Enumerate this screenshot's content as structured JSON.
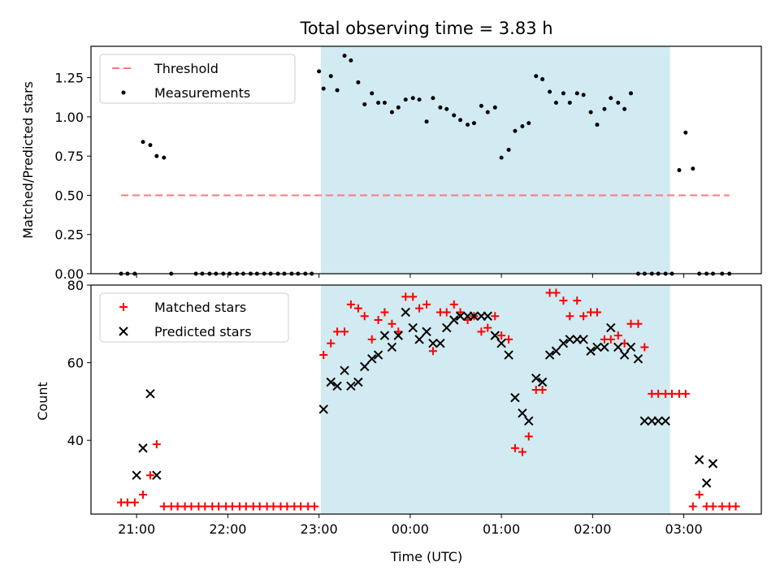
{
  "title": "Total observing time = 3.83 h",
  "xlabel": "Time (UTC)",
  "xticks": [
    "21:00",
    "22:00",
    "23:00",
    "00:00",
    "01:00",
    "02:00",
    "03:00"
  ],
  "colors": {
    "threshold": "#ff7777",
    "matched": "#ff0000",
    "predicted": "#000000",
    "span": "#add8e6"
  },
  "chart_data": [
    {
      "type": "scatter",
      "ylabel": "Matched/Predicted stars",
      "ylim": [
        0,
        1.45
      ],
      "yticks": [
        "0.00",
        "0.25",
        "0.50",
        "0.75",
        "1.00",
        "1.25"
      ],
      "xlim_hours": [
        -3.5,
        3.85
      ],
      "highlight_span_hours": [
        -0.98,
        2.85
      ],
      "legend": {
        "placement": "top-left",
        "entries": [
          "Threshold",
          "Measurements"
        ]
      },
      "threshold": {
        "name": "Threshold",
        "value": 0.5,
        "x_range_hours": [
          -3.17,
          3.5
        ]
      },
      "series": [
        {
          "name": "Measurements",
          "x_hours": [
            -3.17,
            -3.1,
            -3.02,
            -2.93,
            -2.85,
            -2.78,
            -2.7,
            -2.62,
            -2.35,
            -2.28,
            -2.2,
            -2.13,
            -2.05,
            -1.98,
            -1.9,
            -1.83,
            -1.75,
            -1.68,
            -1.6,
            -1.53,
            -1.45,
            -1.38,
            -1.3,
            -1.23,
            -1.15,
            -1.08,
            -1.0,
            -0.95,
            -0.87,
            -0.8,
            -0.72,
            -0.65,
            -0.57,
            -0.5,
            -0.42,
            -0.35,
            -0.28,
            -0.2,
            -0.13,
            -0.05,
            0.03,
            0.1,
            0.18,
            0.25,
            0.33,
            0.4,
            0.48,
            0.55,
            0.63,
            0.7,
            0.78,
            0.85,
            0.93,
            1.0,
            1.08,
            1.15,
            1.23,
            1.3,
            1.38,
            1.45,
            1.53,
            1.6,
            1.68,
            1.75,
            1.83,
            1.9,
            1.98,
            2.05,
            2.13,
            2.2,
            2.28,
            2.35,
            2.42,
            2.5,
            2.57,
            2.65,
            2.72,
            2.8,
            2.87,
            2.95,
            3.02,
            3.1,
            3.17,
            3.25,
            3.32,
            3.42,
            3.5
          ],
          "y": [
            0,
            0,
            0,
            0.84,
            0.82,
            0.75,
            0.74,
            0,
            0,
            0,
            0,
            0,
            0,
            0,
            0,
            0,
            0,
            0,
            0,
            0,
            0,
            0,
            0,
            0,
            0,
            0,
            1.29,
            1.18,
            1.26,
            1.17,
            1.39,
            1.36,
            1.22,
            1.08,
            1.15,
            1.09,
            1.09,
            1.03,
            1.06,
            1.11,
            1.12,
            1.11,
            0.97,
            1.12,
            1.06,
            1.05,
            1.01,
            0.98,
            0.95,
            0.96,
            1.07,
            1.03,
            1.06,
            0.74,
            0.79,
            0.91,
            0.94,
            0.96,
            1.26,
            1.24,
            1.16,
            1.09,
            1.15,
            1.09,
            1.15,
            1.14,
            1.03,
            0.95,
            1.05,
            1.12,
            1.09,
            1.05,
            1.15,
            0,
            0,
            0,
            0,
            0,
            0,
            0.66,
            0.9,
            0.67,
            0,
            0,
            0,
            0,
            0
          ]
        }
      ]
    },
    {
      "type": "scatter",
      "ylabel": "Count",
      "ylim": [
        21,
        80
      ],
      "yticks": [
        "40",
        "60",
        "80"
      ],
      "xlim_hours": [
        -3.5,
        3.85
      ],
      "highlight_span_hours": [
        -0.98,
        2.85
      ],
      "legend": {
        "placement": "top-left",
        "entries": [
          "Matched stars",
          "Predicted stars"
        ]
      },
      "series": [
        {
          "name": "Matched stars",
          "marker": "plus",
          "x_hours": [
            -3.17,
            -3.1,
            -3.02,
            -2.93,
            -2.85,
            -2.78,
            -2.7,
            -2.62,
            -2.55,
            -2.47,
            -2.4,
            -2.32,
            -2.25,
            -2.17,
            -2.1,
            -2.02,
            -1.95,
            -1.87,
            -1.8,
            -1.72,
            -1.65,
            -1.57,
            -1.5,
            -1.42,
            -1.35,
            -1.27,
            -1.2,
            -1.12,
            -1.05,
            -0.95,
            -0.87,
            -0.8,
            -0.72,
            -0.65,
            -0.57,
            -0.5,
            -0.42,
            -0.35,
            -0.28,
            -0.2,
            -0.13,
            -0.05,
            0.03,
            0.1,
            0.18,
            0.25,
            0.33,
            0.4,
            0.48,
            0.55,
            0.63,
            0.7,
            0.78,
            0.85,
            0.93,
            1.0,
            1.08,
            1.15,
            1.23,
            1.3,
            1.38,
            1.45,
            1.53,
            1.6,
            1.68,
            1.75,
            1.83,
            1.9,
            1.98,
            2.05,
            2.13,
            2.2,
            2.28,
            2.35,
            2.42,
            2.5,
            2.57,
            2.65,
            2.72,
            2.8,
            2.87,
            2.95,
            3.02,
            3.1,
            3.17,
            3.25,
            3.32,
            3.42,
            3.5,
            3.57
          ],
          "y": [
            24,
            24,
            24,
            26,
            31,
            39,
            23,
            23,
            23,
            23,
            23,
            23,
            23,
            23,
            23,
            23,
            23,
            23,
            23,
            23,
            23,
            23,
            23,
            23,
            23,
            23,
            23,
            23,
            23,
            62,
            65,
            68,
            68,
            75,
            74,
            72,
            66,
            71,
            73,
            70,
            68,
            77,
            77,
            74,
            75,
            63,
            73,
            73,
            75,
            73,
            71,
            72,
            68,
            69,
            72,
            67,
            66,
            38,
            37,
            41,
            53,
            53,
            78,
            78,
            76,
            72,
            76,
            72,
            73,
            73,
            66,
            66,
            67,
            65,
            70,
            70,
            64,
            52,
            52,
            52,
            52,
            52,
            52,
            23,
            26,
            23,
            23,
            23,
            23,
            23
          ]
        },
        {
          "name": "Predicted stars",
          "marker": "x",
          "x_hours": [
            -3.0,
            -2.93,
            -2.85,
            -2.78,
            -0.95,
            -0.87,
            -0.8,
            -0.72,
            -0.65,
            -0.57,
            -0.5,
            -0.42,
            -0.35,
            -0.28,
            -0.2,
            -0.13,
            -0.05,
            0.03,
            0.1,
            0.18,
            0.25,
            0.33,
            0.4,
            0.48,
            0.55,
            0.63,
            0.7,
            0.78,
            0.85,
            0.93,
            1.0,
            1.08,
            1.15,
            1.23,
            1.3,
            1.38,
            1.45,
            1.53,
            1.6,
            1.68,
            1.75,
            1.83,
            1.9,
            1.98,
            2.05,
            2.13,
            2.2,
            2.28,
            2.35,
            2.42,
            2.5,
            2.57,
            2.65,
            2.72,
            2.8,
            3.17,
            3.25,
            3.32
          ],
          "y": [
            31,
            38,
            52,
            31,
            48,
            55,
            54,
            58,
            54,
            55,
            59,
            61,
            62,
            67,
            64,
            67,
            73,
            69,
            66,
            68,
            65,
            65,
            69,
            71,
            72,
            72,
            72,
            72,
            72,
            67,
            65,
            62,
            51,
            47,
            45,
            56,
            55,
            62,
            63,
            65,
            66,
            66,
            66,
            63,
            64,
            64,
            69,
            64,
            62,
            64,
            61,
            45,
            45,
            45,
            45,
            35,
            29,
            34
          ]
        }
      ]
    }
  ]
}
